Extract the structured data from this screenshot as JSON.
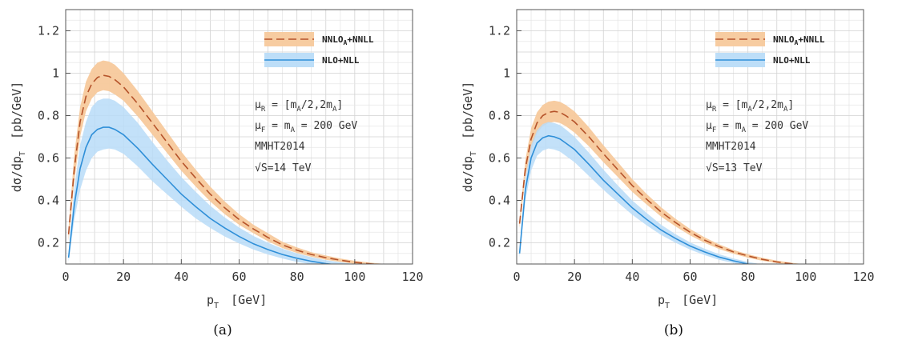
{
  "chart_data": [
    {
      "type": "line",
      "caption": "(a)",
      "xlabel_main": "p",
      "xlabel_sub": "T",
      "xlabel_unit": "[GeV]",
      "ylabel_main": "dσ/dp",
      "ylabel_sub": "T",
      "ylabel_unit": "[pb/GeV]",
      "xlim": [
        0,
        120
      ],
      "ylim": [
        0.1,
        1.3
      ],
      "xticks": [
        0,
        20,
        40,
        60,
        80,
        100,
        120
      ],
      "yticks": [
        0.2,
        0.4,
        0.6,
        0.8,
        1,
        1.2
      ],
      "ytick_labels": [
        "0.2",
        "0.4",
        "0.6",
        "0.8",
        "1",
        "1.2"
      ],
      "grid": true,
      "legend_position": "top-right",
      "annotations": [
        {
          "main": "μ",
          "sub": "R",
          "rest": " = [m",
          "sub2": "A",
          "rest2": "/2,2m",
          "sub3": "A",
          "rest3": "]"
        },
        {
          "main": "μ",
          "sub": "F",
          "rest": " = m",
          "sub2": "A",
          "rest2": " = 200 GeV",
          "sub3": "",
          "rest3": ""
        },
        {
          "main": "MMHT2014",
          "sub": "",
          "rest": "",
          "sub2": "",
          "rest2": "",
          "sub3": "",
          "rest3": ""
        },
        {
          "main": "√S=14 TeV",
          "sub": "",
          "rest": "",
          "sub2": "",
          "rest2": "",
          "sub3": "",
          "rest3": ""
        }
      ],
      "series": [
        {
          "name_main": "NNLO",
          "name_sub": "A",
          "name_rest": "+NNLL",
          "color": "#b5532a",
          "band_color": "#f7c99c",
          "dash": true,
          "x": [
            1,
            3,
            5,
            7,
            9,
            11,
            13,
            15,
            17,
            20,
            25,
            30,
            35,
            40,
            45,
            50,
            55,
            60,
            65,
            70,
            75,
            80,
            85,
            90,
            95,
            100,
            105,
            110,
            113
          ],
          "y": [
            0.24,
            0.55,
            0.77,
            0.89,
            0.95,
            0.98,
            0.99,
            0.985,
            0.97,
            0.935,
            0.855,
            0.765,
            0.675,
            0.585,
            0.505,
            0.43,
            0.365,
            0.31,
            0.265,
            0.225,
            0.19,
            0.165,
            0.145,
            0.13,
            0.118,
            0.108,
            0.101,
            0.096,
            0.094
          ],
          "band_upper": [
            0.27,
            0.62,
            0.84,
            0.96,
            1.02,
            1.05,
            1.06,
            1.055,
            1.04,
            1.0,
            0.915,
            0.82,
            0.725,
            0.63,
            0.545,
            0.465,
            0.395,
            0.335,
            0.285,
            0.245,
            0.205,
            0.178,
            0.156,
            0.14,
            0.126,
            0.115,
            0.107,
            0.101,
            0.099
          ],
          "band_lower": [
            0.21,
            0.49,
            0.7,
            0.82,
            0.88,
            0.91,
            0.92,
            0.915,
            0.9,
            0.87,
            0.795,
            0.71,
            0.625,
            0.54,
            0.465,
            0.395,
            0.335,
            0.285,
            0.245,
            0.207,
            0.175,
            0.152,
            0.134,
            0.12,
            0.11,
            0.101,
            0.095,
            0.091,
            0.089
          ]
        },
        {
          "name_main": "NLO+NLL",
          "name_sub": "",
          "name_rest": "",
          "color": "#2f8fd8",
          "band_color": "#b9dcf8",
          "dash": false,
          "x": [
            1,
            3,
            5,
            7,
            9,
            11,
            13,
            15,
            17,
            20,
            25,
            30,
            35,
            40,
            45,
            50,
            55,
            60,
            65,
            70,
            75,
            80,
            85,
            90,
            95,
            100
          ],
          "y": [
            0.13,
            0.38,
            0.55,
            0.65,
            0.71,
            0.735,
            0.745,
            0.745,
            0.735,
            0.71,
            0.645,
            0.57,
            0.5,
            0.43,
            0.37,
            0.315,
            0.27,
            0.23,
            0.195,
            0.168,
            0.145,
            0.127,
            0.113,
            0.102,
            0.094,
            0.088
          ],
          "band_upper": [
            0.16,
            0.46,
            0.66,
            0.77,
            0.84,
            0.87,
            0.88,
            0.88,
            0.87,
            0.84,
            0.765,
            0.675,
            0.59,
            0.51,
            0.44,
            0.375,
            0.32,
            0.272,
            0.232,
            0.2,
            0.172,
            0.15,
            0.132,
            0.118,
            0.108,
            0.1
          ],
          "band_lower": [
            0.11,
            0.31,
            0.45,
            0.54,
            0.6,
            0.63,
            0.64,
            0.645,
            0.64,
            0.62,
            0.56,
            0.49,
            0.43,
            0.37,
            0.315,
            0.27,
            0.23,
            0.197,
            0.168,
            0.145,
            0.126,
            0.11,
            0.099,
            0.09,
            0.083,
            0.078
          ]
        }
      ]
    },
    {
      "type": "line",
      "caption": "(b)",
      "xlabel_main": "p",
      "xlabel_sub": "T",
      "xlabel_unit": "[GeV]",
      "ylabel_main": "dσ/dp",
      "ylabel_sub": "T",
      "ylabel_unit": "[pb/GeV]",
      "xlim": [
        0,
        120
      ],
      "ylim": [
        0.1,
        1.3
      ],
      "xticks": [
        0,
        20,
        40,
        60,
        80,
        100,
        120
      ],
      "yticks": [
        0.2,
        0.4,
        0.6,
        0.8,
        1,
        1.2
      ],
      "ytick_labels": [
        "0.2",
        "0.4",
        "0.6",
        "0.8",
        "1",
        "1.2"
      ],
      "grid": true,
      "legend_position": "top-right",
      "annotations": [
        {
          "main": "μ",
          "sub": "R",
          "rest": " = [m",
          "sub2": "A",
          "rest2": "/2,2m",
          "sub3": "A",
          "rest3": "]"
        },
        {
          "main": "μ",
          "sub": "F",
          "rest": " = m",
          "sub2": "A",
          "rest2": " = 200 GeV",
          "sub3": "",
          "rest3": ""
        },
        {
          "main": "MMHT2014",
          "sub": "",
          "rest": "",
          "sub2": "",
          "rest2": "",
          "sub3": "",
          "rest3": ""
        },
        {
          "main": "√S=13 TeV",
          "sub": "",
          "rest": "",
          "sub2": "",
          "rest2": "",
          "sub3": "",
          "rest3": ""
        }
      ],
      "series": [
        {
          "name_main": "NNLO",
          "name_sub": "A",
          "name_rest": "+NNLL",
          "color": "#b5532a",
          "band_color": "#f7c99c",
          "dash": true,
          "x": [
            1,
            3,
            5,
            7,
            9,
            11,
            13,
            15,
            17,
            20,
            25,
            30,
            35,
            40,
            45,
            50,
            55,
            60,
            65,
            70,
            75,
            80,
            85,
            90,
            95,
            100,
            105
          ],
          "y": [
            0.29,
            0.55,
            0.69,
            0.765,
            0.8,
            0.815,
            0.82,
            0.815,
            0.8,
            0.77,
            0.7,
            0.62,
            0.545,
            0.47,
            0.405,
            0.345,
            0.295,
            0.25,
            0.213,
            0.182,
            0.157,
            0.138,
            0.122,
            0.11,
            0.101,
            0.094,
            0.09
          ],
          "band_upper": [
            0.31,
            0.59,
            0.74,
            0.815,
            0.85,
            0.866,
            0.87,
            0.865,
            0.85,
            0.82,
            0.745,
            0.66,
            0.58,
            0.5,
            0.43,
            0.367,
            0.313,
            0.265,
            0.226,
            0.193,
            0.166,
            0.146,
            0.129,
            0.116,
            0.106,
            0.098,
            0.094
          ],
          "band_lower": [
            0.27,
            0.51,
            0.64,
            0.715,
            0.75,
            0.765,
            0.77,
            0.765,
            0.75,
            0.72,
            0.655,
            0.58,
            0.51,
            0.44,
            0.38,
            0.323,
            0.277,
            0.235,
            0.2,
            0.171,
            0.148,
            0.13,
            0.115,
            0.104,
            0.096,
            0.09,
            0.086
          ]
        },
        {
          "name_main": "NLO+NLL",
          "name_sub": "",
          "name_rest": "",
          "color": "#2f8fd8",
          "band_color": "#b9dcf8",
          "dash": false,
          "x": [
            1,
            3,
            5,
            7,
            9,
            11,
            13,
            15,
            17,
            20,
            25,
            30,
            35,
            40,
            45,
            50,
            55,
            60,
            65,
            70,
            75,
            80,
            85
          ],
          "y": [
            0.15,
            0.45,
            0.6,
            0.67,
            0.695,
            0.705,
            0.7,
            0.69,
            0.67,
            0.64,
            0.57,
            0.495,
            0.43,
            0.365,
            0.31,
            0.26,
            0.22,
            0.185,
            0.157,
            0.133,
            0.115,
            0.1,
            0.09
          ],
          "band_upper": [
            0.17,
            0.5,
            0.66,
            0.73,
            0.76,
            0.77,
            0.765,
            0.755,
            0.735,
            0.7,
            0.625,
            0.545,
            0.47,
            0.4,
            0.34,
            0.285,
            0.24,
            0.202,
            0.172,
            0.146,
            0.126,
            0.11,
            0.098
          ],
          "band_lower": [
            0.13,
            0.4,
            0.54,
            0.61,
            0.635,
            0.645,
            0.64,
            0.63,
            0.61,
            0.58,
            0.515,
            0.45,
            0.39,
            0.332,
            0.282,
            0.237,
            0.2,
            0.168,
            0.142,
            0.12,
            0.104,
            0.091,
            0.082
          ]
        }
      ]
    }
  ]
}
